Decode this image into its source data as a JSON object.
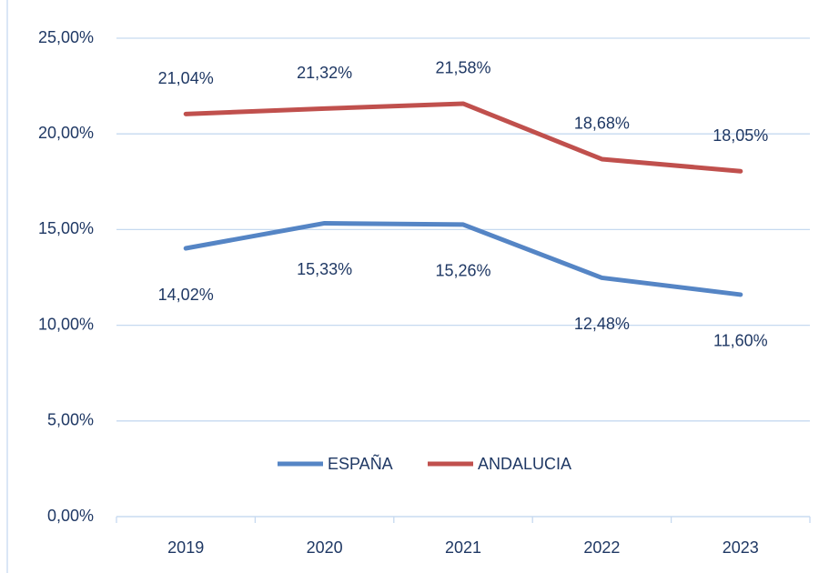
{
  "chart_data": {
    "type": "line",
    "categories": [
      "2019",
      "2020",
      "2021",
      "2022",
      "2023"
    ],
    "series": [
      {
        "name": "ESPAÑA",
        "color": "#5585c5",
        "values": [
          14.02,
          15.33,
          15.26,
          12.48,
          11.6
        ],
        "value_labels": [
          "14,02%",
          "15,33%",
          "15,26%",
          "12,48%",
          "11,60%"
        ]
      },
      {
        "name": "ANDALUCIA",
        "color": "#c0504d",
        "values": [
          21.04,
          21.32,
          21.58,
          18.68,
          18.05
        ],
        "value_labels": [
          "21,04%",
          "21,32%",
          "21,58%",
          "18,68%",
          "18,05%"
        ]
      }
    ],
    "ylim": [
      0,
      25
    ],
    "yticks": [
      {
        "value": 0,
        "label": "0,00%"
      },
      {
        "value": 5,
        "label": "5,00%"
      },
      {
        "value": 10,
        "label": "10,00%"
      },
      {
        "value": 15,
        "label": "15,00%"
      },
      {
        "value": 20,
        "label": "20,00%"
      },
      {
        "value": 25,
        "label": "25,00%"
      }
    ],
    "grid": true,
    "legend": "center"
  }
}
